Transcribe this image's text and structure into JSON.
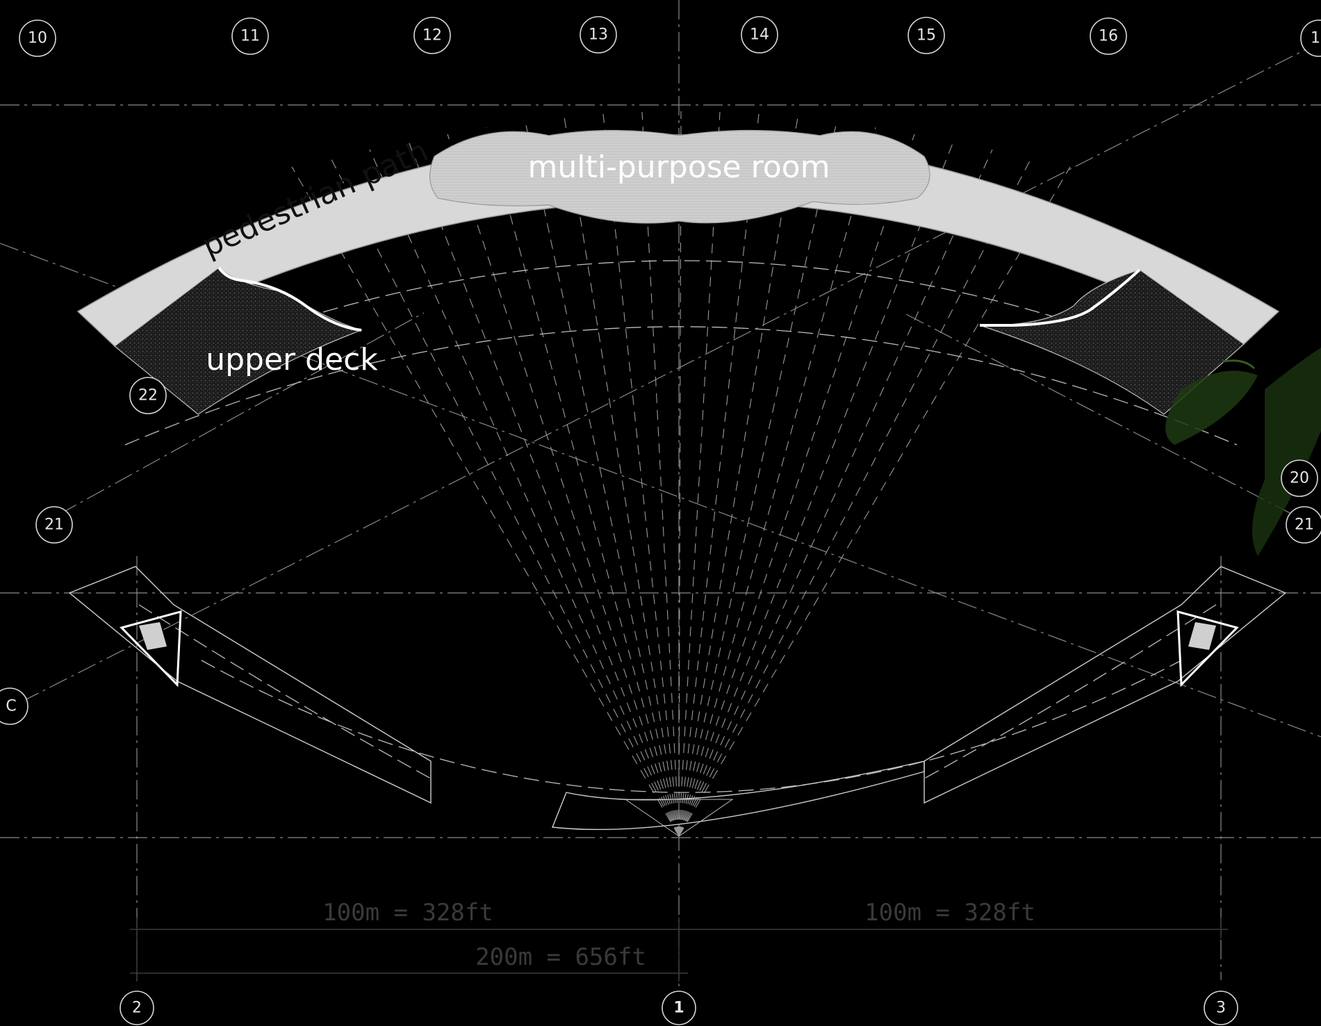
{
  "labels": {
    "pedestrian_path": "pedestrian path",
    "multi_purpose_room": "multi-purpose room",
    "upper_deck": "upper deck"
  },
  "grid_markers": {
    "g10": "10",
    "g11": "11",
    "g12": "12",
    "g13": "13",
    "g14": "14",
    "g15": "15",
    "g16": "16",
    "g17": "1",
    "g22": "22",
    "g21_left": "21",
    "g21_right": "21",
    "g20": "20",
    "gC": "C",
    "g2": "2",
    "g1": "1",
    "g3": "3"
  },
  "scale_bars": {
    "left_segment": "100m = 328ft",
    "right_segment": "100m = 328ft",
    "total": "200m = 656ft"
  },
  "colors": {
    "background": "#000000",
    "linework": "#d0d0d0",
    "path_fill": "#d9d9d9",
    "deck_fill": "#2a2a2a",
    "scale_text": "#3a3a3a"
  }
}
